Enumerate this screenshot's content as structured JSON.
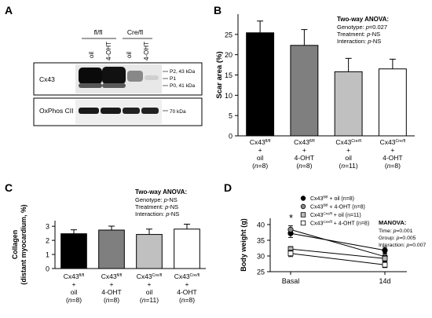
{
  "panels": {
    "a": {
      "letter": "A",
      "group_labels": [
        "fl/fl",
        "Cre/fl"
      ],
      "lane_labels": [
        "oil",
        "4-OHT",
        "oil",
        "4-OHT"
      ],
      "rows": [
        {
          "label": "Cx43",
          "band_labels": [
            "P2, 43 kDa",
            "P1",
            "P0, 41 kDa"
          ]
        },
        {
          "label": "OxPhos CII",
          "band_labels": [
            "70 kDa"
          ]
        }
      ]
    },
    "b": {
      "letter": "B",
      "stats_title": "Two-way ANOVA:",
      "stats_lines": [
        {
          "pre": "Genotype: ",
          "p": "p",
          "post": "=0.027"
        },
        {
          "pre": "Treatment: ",
          "p": "p",
          "post": "-NS"
        },
        {
          "pre": "Interaction: ",
          "p": "p",
          "post": "-NS"
        }
      ]
    },
    "c": {
      "letter": "C",
      "stats_title": "Two-way ANOVA:",
      "stats_lines": [
        {
          "pre": "Genotype: ",
          "p": "p",
          "post": "-NS"
        },
        {
          "pre": "Treatment: ",
          "p": "p",
          "post": "-NS"
        },
        {
          "pre": "Interaction: ",
          "p": "p",
          "post": "-NS"
        }
      ]
    },
    "d": {
      "letter": "D",
      "significance_marker": "*",
      "stats_title": "MANOVA:",
      "stats_lines": [
        {
          "pre": "Time: ",
          "p": "p",
          "post": "=0.001"
        },
        {
          "pre": "Group: ",
          "p": "p",
          "post": "=0.005"
        },
        {
          "pre": "Interaction: ",
          "p": "p",
          "post": "=0.007"
        }
      ]
    }
  },
  "chart_data": [
    {
      "panel": "B",
      "type": "bar",
      "ylabel": "Scar area (%)",
      "ylim": [
        0,
        30
      ],
      "yticks": [
        0,
        5,
        10,
        15,
        20,
        25
      ],
      "groups": [
        {
          "base": "Cx43",
          "sup": "fl/fl",
          "treatment": "oil",
          "n": "8",
          "value": 25.4,
          "error": 2.9,
          "fill": "#000000"
        },
        {
          "base": "Cx43",
          "sup": "fl/fl",
          "treatment": "4-OHT",
          "n": "8",
          "value": 22.3,
          "error": 3.9,
          "fill": "#7f7f7f"
        },
        {
          "base": "Cx43",
          "sup": "Cre/fl",
          "treatment": "oil",
          "n": "11",
          "value": 15.8,
          "error": 3.3,
          "fill": "#c0c0c0"
        },
        {
          "base": "Cx43",
          "sup": "Cre/fl",
          "treatment": "4-OHT",
          "n": "8",
          "value": 16.5,
          "error": 2.4,
          "fill": "#ffffff"
        }
      ]
    },
    {
      "panel": "C",
      "type": "bar",
      "ylabel": "Collagen",
      "ylabel2": "(distant myocardium, %)",
      "ylim": [
        0,
        3.4
      ],
      "yticks": [
        0,
        1,
        2,
        3
      ],
      "groups": [
        {
          "base": "Cx43",
          "sup": "fl/fl",
          "treatment": "oil",
          "n": "8",
          "value": 2.47,
          "error": 0.28,
          "fill": "#000000"
        },
        {
          "base": "Cx43",
          "sup": "fl/fl",
          "treatment": "4-OHT",
          "n": "8",
          "value": 2.73,
          "error": 0.28,
          "fill": "#7f7f7f"
        },
        {
          "base": "Cx43",
          "sup": "Cre/fl",
          "treatment": "oil",
          "n": "11",
          "value": 2.42,
          "error": 0.38,
          "fill": "#c0c0c0"
        },
        {
          "base": "Cx43",
          "sup": "Cre/fl",
          "treatment": "4-OHT",
          "n": "8",
          "value": 2.8,
          "error": 0.35,
          "fill": "#ffffff"
        }
      ]
    },
    {
      "panel": "D",
      "type": "line",
      "ylabel": "Body weight (g)",
      "ylim": [
        25,
        42
      ],
      "yticks": [
        25,
        30,
        35,
        40
      ],
      "categories": [
        "Basal",
        "14d"
      ],
      "series": [
        {
          "base": "Cx43",
          "sup": "fl/fl",
          "label": " + oil (n=8)",
          "marker": "circle",
          "fill": "#000000",
          "values": [
            37.2,
            31.8
          ],
          "errors": [
            1.3,
            1.0
          ]
        },
        {
          "base": "Cx43",
          "sup": "fl/fl",
          "label": " + 4-OHT (n=8)",
          "marker": "circle",
          "fill": "#888888",
          "values": [
            38.4,
            29.8
          ],
          "errors": [
            1.2,
            1.1
          ]
        },
        {
          "base": "Cx43",
          "sup": "Cre/fl",
          "label": " + oil (n=11)",
          "marker": "square",
          "fill": "#bbbbbb",
          "values": [
            32.2,
            29.2
          ],
          "errors": [
            0.8,
            0.9
          ]
        },
        {
          "base": "Cx43",
          "sup": "Cre/fl",
          "label": " + 4-OHT (n=8)",
          "marker": "square",
          "fill": "#ffffff",
          "values": [
            30.8,
            27.2
          ],
          "errors": [
            1.0,
            0.9
          ]
        }
      ]
    }
  ]
}
